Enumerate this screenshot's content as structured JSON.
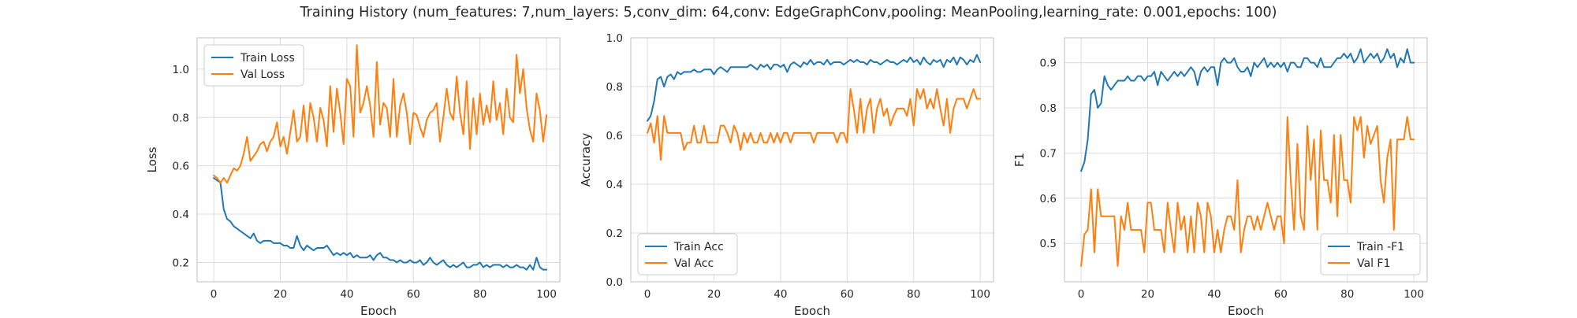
{
  "figure": {
    "title": "Training History (num_features: 7,num_layers: 5,conv_dim: 64,conv: EdgeGraphConv,pooling: MeanPooling,learning_rate: 0.001,epochs: 100)"
  },
  "colors": {
    "train": "#1f77b4",
    "val": "#ff7f0e",
    "grid": "#dcdcdc",
    "spine": "#bfbfbf",
    "background": "#ffffff"
  },
  "chart_data": [
    {
      "type": "line",
      "title": "",
      "xlabel": "Epoch",
      "ylabel": "Loss",
      "xlim": [
        -5,
        104
      ],
      "ylim": [
        0.12,
        1.13
      ],
      "xticks": [
        0,
        20,
        40,
        60,
        80,
        100
      ],
      "yticks": [
        0.2,
        0.4,
        0.6,
        0.8,
        1.0
      ],
      "ytick_labels": [
        "0.2",
        "0.4",
        "0.6",
        "0.8",
        "1.0"
      ],
      "grid": true,
      "legend": "upper-left",
      "series": [
        {
          "name": "Train Loss",
          "color": "#1f77b4",
          "x_start": 0,
          "values": [
            0.55,
            0.54,
            0.53,
            0.42,
            0.38,
            0.37,
            0.35,
            0.34,
            0.33,
            0.32,
            0.31,
            0.3,
            0.32,
            0.29,
            0.28,
            0.29,
            0.29,
            0.29,
            0.28,
            0.28,
            0.28,
            0.27,
            0.27,
            0.26,
            0.26,
            0.31,
            0.27,
            0.25,
            0.27,
            0.26,
            0.25,
            0.26,
            0.26,
            0.26,
            0.27,
            0.25,
            0.23,
            0.24,
            0.23,
            0.24,
            0.23,
            0.24,
            0.22,
            0.23,
            0.22,
            0.22,
            0.22,
            0.23,
            0.21,
            0.23,
            0.24,
            0.22,
            0.22,
            0.21,
            0.21,
            0.2,
            0.21,
            0.2,
            0.2,
            0.21,
            0.2,
            0.2,
            0.21,
            0.19,
            0.2,
            0.22,
            0.2,
            0.19,
            0.2,
            0.21,
            0.19,
            0.18,
            0.19,
            0.18,
            0.19,
            0.2,
            0.18,
            0.18,
            0.19,
            0.19,
            0.2,
            0.18,
            0.19,
            0.18,
            0.19,
            0.19,
            0.19,
            0.18,
            0.19,
            0.18,
            0.18,
            0.19,
            0.18,
            0.18,
            0.17,
            0.19,
            0.17,
            0.22,
            0.18,
            0.17,
            0.17
          ]
        },
        {
          "name": "Val Loss",
          "color": "#ff7f0e",
          "x_start": 0,
          "values": [
            0.56,
            0.55,
            0.53,
            0.55,
            0.53,
            0.56,
            0.59,
            0.58,
            0.6,
            0.65,
            0.72,
            0.62,
            0.64,
            0.66,
            0.69,
            0.7,
            0.66,
            0.7,
            0.72,
            0.78,
            0.68,
            0.72,
            0.65,
            0.74,
            0.83,
            0.7,
            0.72,
            0.85,
            0.7,
            0.86,
            0.8,
            0.7,
            0.84,
            0.79,
            0.68,
            0.93,
            0.74,
            0.92,
            0.82,
            0.69,
            0.96,
            0.93,
            0.72,
            1.1,
            0.82,
            0.86,
            0.93,
            0.85,
            0.72,
            1.03,
            0.77,
            0.86,
            0.84,
            0.72,
            0.96,
            0.72,
            0.85,
            0.9,
            0.82,
            0.69,
            0.82,
            0.81,
            0.76,
            0.72,
            0.79,
            0.82,
            0.83,
            0.86,
            0.7,
            0.8,
            0.92,
            0.82,
            0.79,
            0.97,
            0.82,
            0.73,
            0.95,
            0.67,
            0.88,
            0.73,
            0.9,
            0.77,
            0.85,
            0.78,
            0.95,
            0.79,
            0.86,
            0.73,
            0.92,
            0.8,
            0.78,
            1.06,
            0.9,
            1.0,
            0.84,
            0.75,
            0.7,
            0.9,
            0.83,
            0.7,
            0.81
          ]
        }
      ]
    },
    {
      "type": "line",
      "title": "",
      "xlabel": "Epoch",
      "ylabel": "Accuracy",
      "xlim": [
        -5,
        104
      ],
      "ylim": [
        0.0,
        1.0
      ],
      "xticks": [
        0,
        20,
        40,
        60,
        80,
        100
      ],
      "yticks": [
        0.0,
        0.2,
        0.4,
        0.6,
        0.8,
        1.0
      ],
      "ytick_labels": [
        "0.0",
        "0.2",
        "0.4",
        "0.6",
        "0.8",
        "1.0"
      ],
      "grid": true,
      "legend": "lower-left",
      "series": [
        {
          "name": "Train Acc",
          "color": "#1f77b4",
          "x_start": 0,
          "values": [
            0.66,
            0.68,
            0.74,
            0.83,
            0.84,
            0.8,
            0.84,
            0.85,
            0.83,
            0.86,
            0.85,
            0.86,
            0.86,
            0.86,
            0.87,
            0.86,
            0.86,
            0.87,
            0.87,
            0.87,
            0.85,
            0.87,
            0.88,
            0.87,
            0.86,
            0.88,
            0.88,
            0.88,
            0.88,
            0.88,
            0.88,
            0.89,
            0.88,
            0.87,
            0.89,
            0.88,
            0.89,
            0.87,
            0.89,
            0.89,
            0.88,
            0.89,
            0.86,
            0.89,
            0.9,
            0.89,
            0.88,
            0.9,
            0.89,
            0.91,
            0.89,
            0.9,
            0.9,
            0.89,
            0.91,
            0.89,
            0.9,
            0.9,
            0.9,
            0.89,
            0.9,
            0.91,
            0.9,
            0.91,
            0.9,
            0.9,
            0.89,
            0.91,
            0.9,
            0.9,
            0.89,
            0.9,
            0.91,
            0.9,
            0.9,
            0.89,
            0.9,
            0.91,
            0.9,
            0.92,
            0.9,
            0.91,
            0.89,
            0.92,
            0.9,
            0.89,
            0.91,
            0.9,
            0.91,
            0.88,
            0.91,
            0.9,
            0.92,
            0.89,
            0.92,
            0.91,
            0.89,
            0.91,
            0.9,
            0.93,
            0.9
          ]
        },
        {
          "name": "Val Acc",
          "color": "#ff7f0e",
          "x_start": 0,
          "values": [
            0.61,
            0.65,
            0.57,
            0.68,
            0.5,
            0.68,
            0.61,
            0.61,
            0.61,
            0.61,
            0.61,
            0.54,
            0.57,
            0.57,
            0.64,
            0.57,
            0.57,
            0.64,
            0.57,
            0.57,
            0.57,
            0.57,
            0.64,
            0.64,
            0.61,
            0.57,
            0.64,
            0.61,
            0.54,
            0.61,
            0.57,
            0.61,
            0.57,
            0.57,
            0.61,
            0.57,
            0.57,
            0.61,
            0.57,
            0.61,
            0.57,
            0.61,
            0.61,
            0.57,
            0.61,
            0.61,
            0.61,
            0.61,
            0.61,
            0.61,
            0.57,
            0.61,
            0.61,
            0.61,
            0.61,
            0.61,
            0.61,
            0.57,
            0.61,
            0.61,
            0.57,
            0.79,
            0.71,
            0.61,
            0.75,
            0.61,
            0.71,
            0.75,
            0.61,
            0.71,
            0.75,
            0.68,
            0.71,
            0.64,
            0.68,
            0.71,
            0.71,
            0.71,
            0.68,
            0.75,
            0.64,
            0.79,
            0.75,
            0.79,
            0.71,
            0.75,
            0.71,
            0.79,
            0.71,
            0.64,
            0.75,
            0.61,
            0.71,
            0.75,
            0.75,
            0.75,
            0.71,
            0.75,
            0.79,
            0.75,
            0.75
          ]
        }
      ]
    },
    {
      "type": "line",
      "title": "",
      "xlabel": "Epoch",
      "ylabel": "F1",
      "xlim": [
        -5,
        104
      ],
      "ylim": [
        0.415,
        0.955
      ],
      "xticks": [
        0,
        20,
        40,
        60,
        80,
        100
      ],
      "yticks": [
        0.5,
        0.6,
        0.7,
        0.8,
        0.9
      ],
      "ytick_labels": [
        "0.5",
        "0.6",
        "0.7",
        "0.8",
        "0.9"
      ],
      "grid": true,
      "legend": "lower-right",
      "series": [
        {
          "name": "Train -F1",
          "color": "#1f77b4",
          "x_start": 0,
          "values": [
            0.66,
            0.68,
            0.73,
            0.83,
            0.84,
            0.8,
            0.81,
            0.87,
            0.85,
            0.84,
            0.85,
            0.86,
            0.86,
            0.86,
            0.87,
            0.86,
            0.86,
            0.87,
            0.87,
            0.86,
            0.87,
            0.87,
            0.88,
            0.85,
            0.88,
            0.87,
            0.86,
            0.87,
            0.88,
            0.87,
            0.88,
            0.87,
            0.88,
            0.89,
            0.88,
            0.85,
            0.88,
            0.89,
            0.88,
            0.89,
            0.89,
            0.85,
            0.9,
            0.91,
            0.9,
            0.9,
            0.91,
            0.89,
            0.88,
            0.88,
            0.89,
            0.87,
            0.9,
            0.89,
            0.9,
            0.91,
            0.89,
            0.9,
            0.89,
            0.9,
            0.89,
            0.9,
            0.88,
            0.9,
            0.9,
            0.89,
            0.89,
            0.91,
            0.91,
            0.9,
            0.9,
            0.89,
            0.91,
            0.89,
            0.89,
            0.89,
            0.9,
            0.91,
            0.91,
            0.92,
            0.91,
            0.92,
            0.9,
            0.91,
            0.93,
            0.9,
            0.91,
            0.92,
            0.91,
            0.92,
            0.9,
            0.91,
            0.93,
            0.91,
            0.92,
            0.89,
            0.91,
            0.9,
            0.93,
            0.9,
            0.9
          ]
        },
        {
          "name": "Val F1",
          "color": "#ff7f0e",
          "x_start": 0,
          "values": [
            0.45,
            0.52,
            0.53,
            0.62,
            0.48,
            0.62,
            0.56,
            0.56,
            0.56,
            0.56,
            0.56,
            0.45,
            0.56,
            0.53,
            0.59,
            0.53,
            0.53,
            0.53,
            0.53,
            0.48,
            0.59,
            0.59,
            0.53,
            0.53,
            0.53,
            0.48,
            0.59,
            0.53,
            0.48,
            0.59,
            0.53,
            0.56,
            0.48,
            0.56,
            0.48,
            0.59,
            0.56,
            0.48,
            0.59,
            0.56,
            0.48,
            0.53,
            0.48,
            0.53,
            0.56,
            0.56,
            0.53,
            0.64,
            0.48,
            0.53,
            0.56,
            0.56,
            0.53,
            0.56,
            0.53,
            0.56,
            0.59,
            0.56,
            0.53,
            0.56,
            0.56,
            0.5,
            0.78,
            0.64,
            0.53,
            0.72,
            0.56,
            0.53,
            0.76,
            0.64,
            0.73,
            0.53,
            0.75,
            0.64,
            0.64,
            0.59,
            0.74,
            0.56,
            0.74,
            0.64,
            0.64,
            0.59,
            0.78,
            0.75,
            0.78,
            0.69,
            0.76,
            0.72,
            0.74,
            0.76,
            0.64,
            0.59,
            0.69,
            0.73,
            0.53,
            0.73,
            0.73,
            0.73,
            0.78,
            0.73,
            0.73
          ]
        }
      ]
    }
  ]
}
